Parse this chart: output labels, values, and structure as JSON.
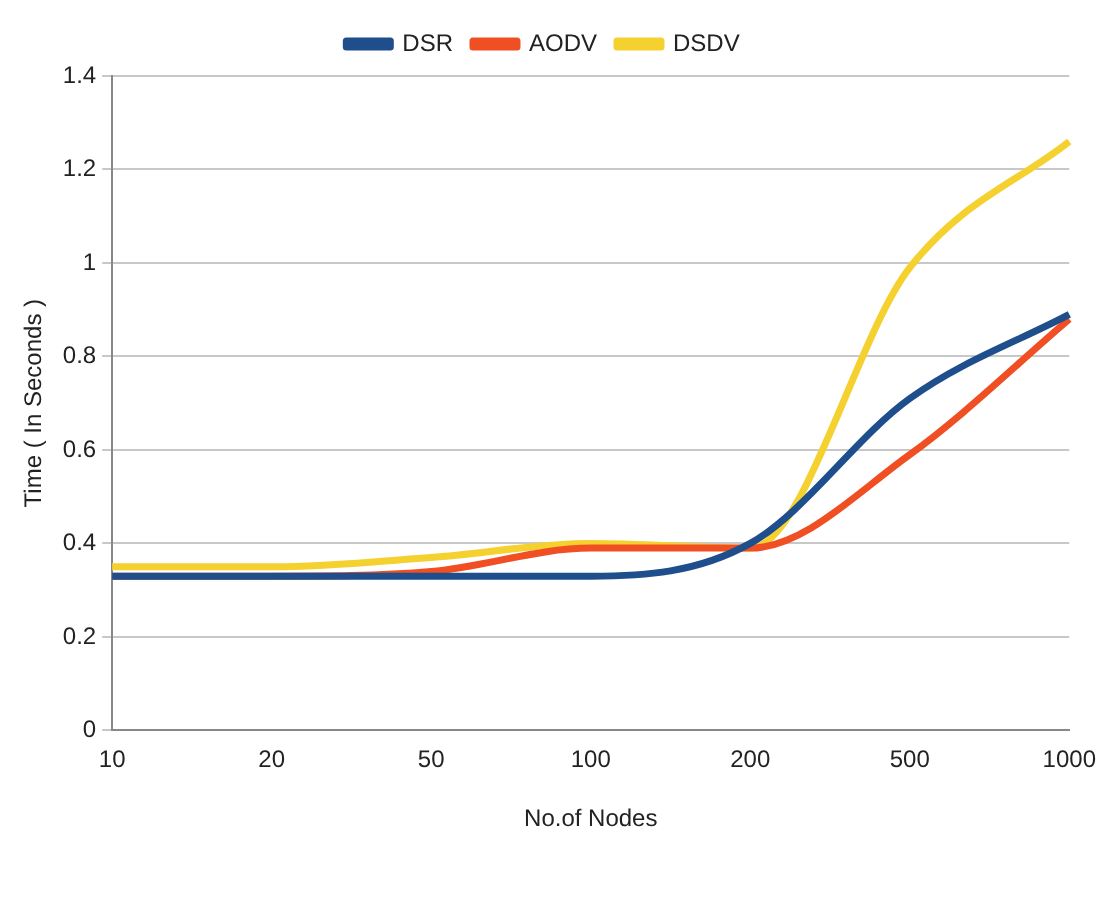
{
  "chart_data": {
    "type": "line",
    "xlabel": "No.of Nodes",
    "ylabel": "Time ( In Seconds )",
    "categories": [
      "10",
      "20",
      "50",
      "100",
      "200",
      "500",
      "1000"
    ],
    "series": [
      {
        "name": "DSR",
        "color": "#1f4e8c",
        "values": [
          0.33,
          0.33,
          0.33,
          0.33,
          0.4,
          0.71,
          0.89
        ]
      },
      {
        "name": "AODV",
        "color": "#f04e23",
        "values": [
          0.33,
          0.33,
          0.34,
          0.39,
          0.39,
          0.59,
          0.88
        ]
      },
      {
        "name": "DSDV",
        "color": "#f5d130",
        "values": [
          0.35,
          0.35,
          0.37,
          0.4,
          0.39,
          0.99,
          1.26
        ]
      }
    ],
    "ylim": [
      0,
      1.4
    ],
    "yticks": [
      0,
      0.2,
      0.4,
      0.6,
      0.8,
      1,
      1.2,
      1.4
    ],
    "grid": "y",
    "legend": "top",
    "marker": "none",
    "line_style": "solid"
  }
}
